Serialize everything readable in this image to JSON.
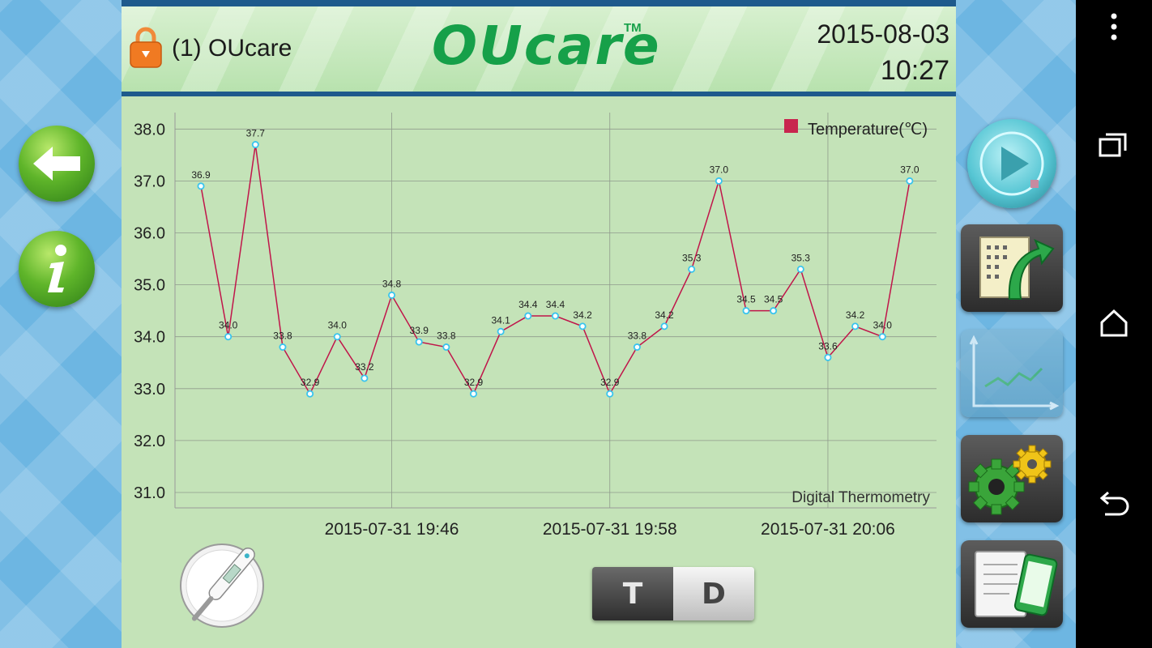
{
  "header": {
    "device_name": "(1) OUcare",
    "logo": "OUcare",
    "logo_tm": "TM",
    "date": "2015-08-03",
    "time": "10:27"
  },
  "icons": {
    "lock": "lock-icon",
    "back": "arrow-left-icon",
    "info": "info-icon",
    "play": "play-icon",
    "export": "export-data-icon",
    "chart": "line-chart-icon",
    "settings": "gears-icon",
    "notes": "document-phone-icon",
    "thermometer": "thermometer-icon",
    "nav_more": "more-vert-icon",
    "nav_recent": "recent-apps-icon",
    "nav_home": "home-icon",
    "nav_back": "back-icon"
  },
  "toggle": {
    "t_label": "T",
    "d_label": "D"
  },
  "chart_data": {
    "type": "line",
    "series": [
      {
        "name": "Temperature(℃)",
        "values": [
          36.9,
          34.0,
          37.7,
          33.8,
          32.9,
          34.0,
          33.2,
          34.8,
          33.9,
          33.8,
          32.9,
          34.1,
          34.4,
          34.4,
          34.2,
          32.9,
          33.8,
          34.2,
          35.3,
          37.0,
          34.5,
          34.5,
          35.3,
          33.6,
          34.2,
          34.0,
          37.0
        ]
      }
    ],
    "x_tick_labels": [
      "2015-07-31 19:46",
      "2015-07-31 19:58",
      "2015-07-31 20:06"
    ],
    "x_tick_index": [
      7,
      15,
      23
    ],
    "y_ticks": [
      "31.0",
      "32.0",
      "33.0",
      "34.0",
      "35.0",
      "36.0",
      "37.0",
      "38.0"
    ],
    "ylim": [
      30.7,
      38.0
    ],
    "watermark": "Digital Thermometry",
    "legend_position": "top-right",
    "grid": true,
    "colors": {
      "line": "#c0154a",
      "marker": "#ffffff",
      "marker_stroke": "#39c4ee",
      "legend": "#c8254e"
    }
  }
}
